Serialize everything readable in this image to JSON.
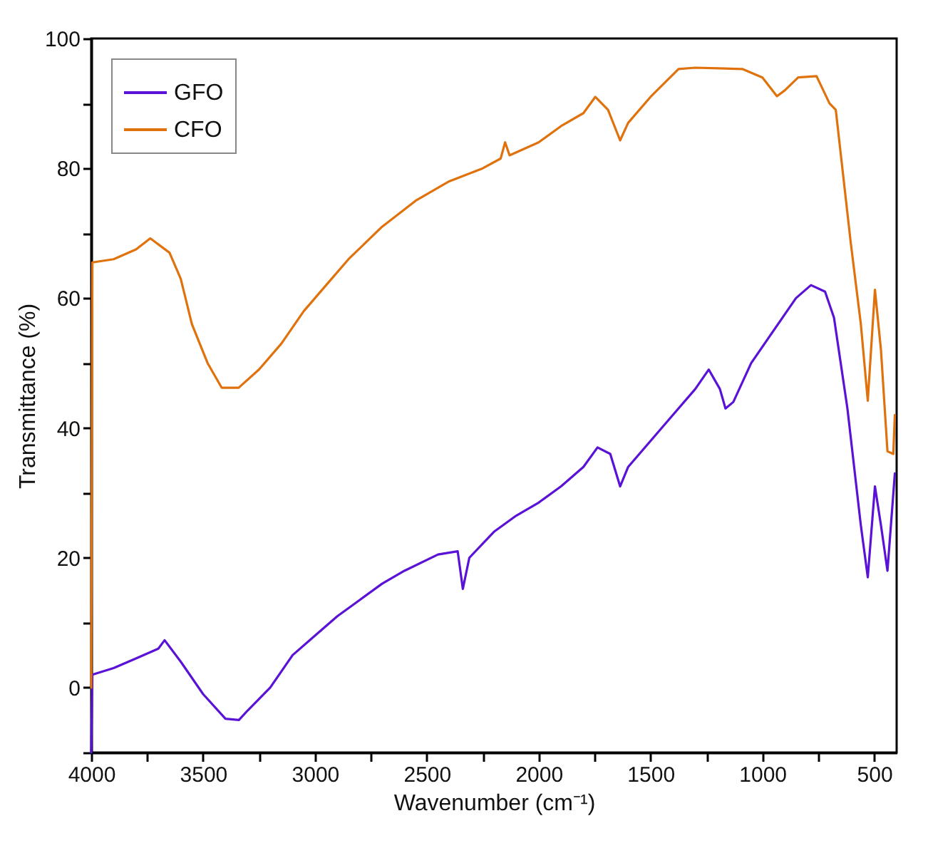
{
  "chart_data": {
    "type": "line",
    "xlabel": "Wavenumber (cm⁻¹)",
    "ylabel": "Transmittance (%)",
    "xlim": [
      4000,
      400
    ],
    "ylim": [
      -10,
      100
    ],
    "xticks": [
      4000,
      {
        "value": 3750,
        "label": null
      },
      3500,
      {
        "value": 3250,
        "label": null
      },
      3000,
      {
        "value": 2750,
        "label": null
      },
      2500,
      {
        "value": 2250,
        "label": null
      },
      2000,
      {
        "value": 1750,
        "label": null
      },
      1500,
      {
        "value": 1250,
        "label": null
      },
      1000,
      {
        "value": 750,
        "label": null
      },
      500
    ],
    "yticks": [
      {
        "value": -10,
        "label": null
      },
      0,
      {
        "value": 10,
        "label": null
      },
      20,
      {
        "value": 30,
        "label": null
      },
      40,
      {
        "value": 50,
        "label": null
      },
      60,
      {
        "value": 70,
        "label": null
      },
      80,
      {
        "value": 90,
        "label": null
      },
      100
    ],
    "legend": "top left",
    "grid": false,
    "line_style": "solid",
    "series": [
      {
        "name": "GFO",
        "color": "#5a12d6",
        "x": [
          4000,
          3995,
          3900,
          3800,
          3700,
          3672,
          3600,
          3500,
          3400,
          3340,
          3300,
          3200,
          3100,
          3000,
          2900,
          2800,
          2700,
          2600,
          2450,
          2362,
          2339,
          2310,
          2200,
          2100,
          2000,
          1900,
          1800,
          1737,
          1680,
          1636,
          1600,
          1500,
          1400,
          1300,
          1240,
          1190,
          1165,
          1130,
          1050,
          950,
          850,
          783,
          720,
          680,
          620,
          560,
          529,
          497,
          470,
          441,
          408
        ],
        "values": [
          -10,
          2,
          3,
          4.5,
          6,
          7.3,
          4,
          -1,
          -4.8,
          -5,
          -3.5,
          0,
          5,
          8,
          11,
          13.5,
          16,
          18,
          20.5,
          21,
          15.2,
          20,
          24,
          26.5,
          28.5,
          31,
          34,
          37,
          36,
          31,
          34,
          38,
          42,
          46,
          49,
          46,
          43,
          44,
          50,
          55,
          60,
          62,
          61,
          57,
          43,
          25,
          17,
          31,
          25,
          18,
          33
        ]
      },
      {
        "name": "CFO",
        "color": "#e0720e",
        "x": [
          4000,
          3995,
          3900,
          3800,
          3736,
          3650,
          3600,
          3550,
          3480,
          3417,
          3341,
          3250,
          3150,
          3050,
          2950,
          2850,
          2700,
          2550,
          2400,
          2250,
          2170,
          2150,
          2130,
          2000,
          1900,
          1800,
          1747,
          1690,
          1636,
          1600,
          1500,
          1375,
          1300,
          1090,
          1000,
          935,
          900,
          840,
          758,
          700,
          672,
          605,
          560,
          529,
          497,
          470,
          441,
          415,
          408
        ],
        "values": [
          0,
          65.5,
          66,
          67.5,
          69.2,
          67,
          63,
          56,
          50,
          46.2,
          46.2,
          49,
          53,
          58,
          62,
          66,
          71,
          75,
          78,
          80,
          81.5,
          84,
          82,
          84,
          86.5,
          88.5,
          91,
          89,
          84.3,
          87,
          91,
          95.3,
          95.5,
          95.3,
          94,
          91.1,
          92,
          94,
          94.2,
          90,
          89,
          68.5,
          56,
          44.2,
          61.3,
          52,
          36.4,
          36,
          42
        ]
      }
    ]
  }
}
